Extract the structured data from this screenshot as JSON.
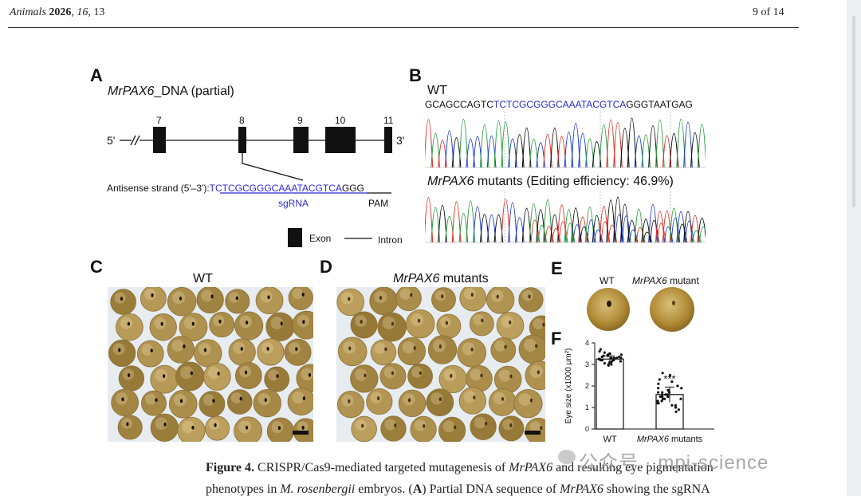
{
  "header": {
    "journal": "Animals",
    "year": "2026",
    "volume": "16",
    "article": "13",
    "page_text": "9 of 14"
  },
  "panelA": {
    "letter": "A",
    "title_italic": "MrPAX6",
    "title_rest": "_DNA (partial)",
    "five_prime": "5'",
    "three_prime": "3'",
    "exon_numbers": [
      "7",
      "8",
      "9",
      "10",
      "11"
    ],
    "antisense_label": "Antisense strand (5'–3'):",
    "sgrna_seq": "TCTCGCGGGCAAATACGTCA",
    "pam_seq": "GGG",
    "sgrna_label": "sgRNA",
    "pam_label": "PAM",
    "legend_exon": "Exon",
    "legend_intron": "Intron"
  },
  "panelB": {
    "letter": "B",
    "wt_label": "WT",
    "seq_prefix": "GCAGCCAGTC",
    "seq_target": "TCTCGCGGGCAAATACGTCA",
    "seq_suffix": "GGGTAATGAG",
    "mutant_italic": "MrPAX6",
    "mutant_rest": " mutants (Editing efficiency: 46.9%)"
  },
  "panelC": {
    "letter": "C",
    "title": "WT"
  },
  "panelD": {
    "letter": "D",
    "title_italic": "MrPAX6",
    "title_rest": " mutants"
  },
  "panelE": {
    "letter": "E",
    "wt_label": "WT",
    "mut_italic": "MrPAX6",
    "mut_rest": " mutant"
  },
  "panelF": {
    "letter": "F",
    "sig": "***"
  },
  "chart_data": {
    "type": "bar",
    "categories": [
      "WT",
      "MrPAX6 mutants"
    ],
    "values": [
      3.25,
      1.6
    ],
    "errors": [
      0.15,
      0.35
    ],
    "ylabel": "Eye size (x1000 μm²)",
    "ylim": [
      0,
      4
    ],
    "yticks": [
      "0",
      "1",
      "2",
      "3",
      "4"
    ],
    "significance": "***",
    "points": [
      [
        3.1,
        3.3,
        3.2,
        3.4,
        3.0,
        3.5,
        3.25,
        3.35,
        3.15,
        3.45,
        3.05,
        3.3,
        3.2,
        3.6,
        3.1,
        3.4,
        3.3,
        3.2,
        3.0,
        3.5,
        3.35,
        3.25,
        3.15,
        3.45,
        3.7,
        2.95,
        3.3,
        3.2,
        3.4,
        3.1,
        3.25,
        3.55
      ],
      [
        1.2,
        1.5,
        1.8,
        2.1,
        1.0,
        1.6,
        1.4,
        2.3,
        1.7,
        1.3,
        0.9,
        1.9,
        1.5,
        2.5,
        1.1,
        1.6,
        1.8,
        1.4,
        2.0,
        1.2,
        1.7,
        1.5,
        0.8,
        2.2,
        1.6,
        1.3,
        1.9,
        1.5,
        1.7,
        1.4,
        2.6,
        1.1
      ]
    ]
  },
  "caption": {
    "fig_label": "Figure 4.",
    "line1_a": " CRISPR/Cas9-mediated targeted mutagenesis of ",
    "line1_b": "MrPAX6",
    "line1_c": " and resulting eye pigmentation",
    "line2_a": "phenotypes in ",
    "line2_b": "M. rosenbergii",
    "line2_c": " embryos. (",
    "line2_d": "A",
    "line2_e": ") Partial DNA sequence of ",
    "line2_f": "MrPAX6",
    "line2_g": " showing the sgRNA"
  },
  "watermark": {
    "text": "公众号 · mpi-science"
  }
}
